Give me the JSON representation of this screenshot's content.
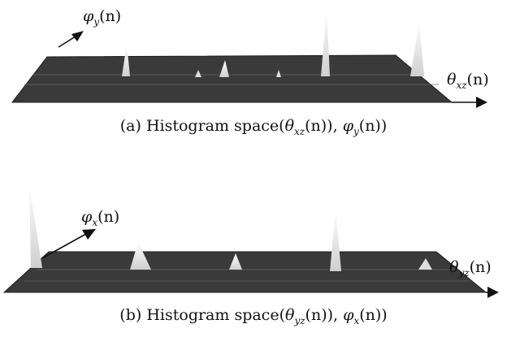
{
  "panels": [
    {
      "id": "a",
      "caption_label": "(a)",
      "caption_text": "Histogram space(",
      "caption_math": "θ",
      "caption_sub1": "xz",
      "caption_mid": "(n)), ",
      "caption_math2": "φ",
      "caption_sub2": "y",
      "caption_end": "(n))",
      "axis_up": {
        "symbol": "φ",
        "sub": "y",
        "arg": "(n)"
      },
      "axis_right": {
        "symbol": "θ",
        "sub": "xz",
        "arg": "(n)"
      }
    },
    {
      "id": "b",
      "caption_label": "(b)",
      "caption_text": "Histogram space(",
      "caption_math": "θ",
      "caption_sub1": "yz",
      "caption_mid": "(n)), ",
      "caption_math2": "φ",
      "caption_sub2": "x",
      "caption_end": "(n))",
      "axis_up": {
        "symbol": "φ",
        "sub": "x",
        "arg": "(n)"
      },
      "axis_right": {
        "symbol": "θ",
        "sub": "yz",
        "arg": "(n)"
      }
    }
  ],
  "colors": {
    "surface": "#3a3a3a",
    "surface_edge": "#1e1e1e",
    "peak": "#f2f2f2",
    "axis": "#111111"
  }
}
